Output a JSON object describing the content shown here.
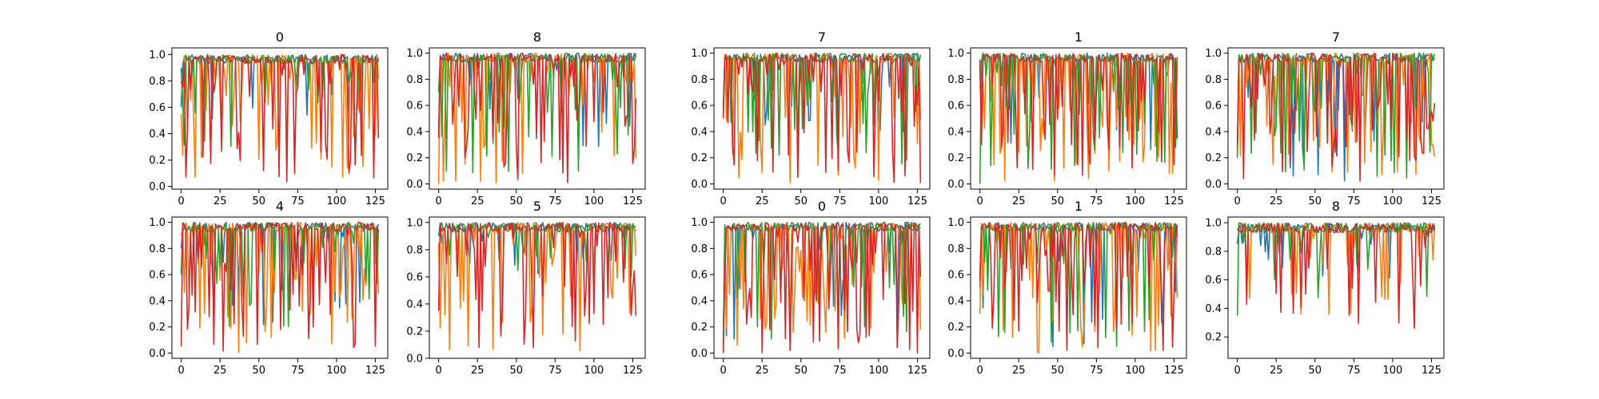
{
  "figure": {
    "background": "#ffffff"
  },
  "chart_data": [
    {
      "type": "line",
      "title": "0",
      "xlim": [
        -6,
        133
      ],
      "ylim": [
        -0.02,
        1.05
      ],
      "xticks": [
        0,
        25,
        50,
        75,
        100,
        125
      ],
      "yticks": [
        0.0,
        0.2,
        0.4,
        0.6,
        0.8,
        1.0
      ],
      "ytick_labels": [
        "0.0",
        "0.2",
        "0.4",
        "0.6",
        "0.8",
        "1.0"
      ],
      "series": [
        {
          "color": "#1f77b4",
          "seed": 11,
          "dip_prob": 0.08,
          "dip_min": 0.5,
          "dip_max": 0.95,
          "start": 0.6
        },
        {
          "color": "#ff7f0e",
          "seed": 12,
          "dip_prob": 0.32,
          "dip_min": 0.05,
          "dip_max": 0.9,
          "start": 0.55
        },
        {
          "color": "#2ca02c",
          "seed": 13,
          "dip_prob": 0.18,
          "dip_min": 0.3,
          "dip_max": 0.95,
          "start": 0.9
        },
        {
          "color": "#d62728",
          "seed": 14,
          "dip_prob": 0.26,
          "dip_min": 0.03,
          "dip_max": 0.95,
          "start": 0.8
        }
      ]
    },
    {
      "type": "line",
      "title": "8",
      "xlim": [
        -6,
        133
      ],
      "ylim": [
        -0.04,
        1.04
      ],
      "xticks": [
        0,
        25,
        50,
        75,
        100,
        125
      ],
      "yticks": [
        0.0,
        0.2,
        0.4,
        0.6,
        0.8,
        1.0
      ],
      "ytick_labels": [
        "0.0",
        "0.2",
        "0.4",
        "0.6",
        "0.8",
        "1.0"
      ],
      "series": [
        {
          "color": "#1f77b4",
          "seed": 21,
          "dip_prob": 0.12,
          "dip_min": 0.2,
          "dip_max": 0.95,
          "start": 0.4
        },
        {
          "color": "#ff7f0e",
          "seed": 22,
          "dip_prob": 0.3,
          "dip_min": 0.0,
          "dip_max": 0.9,
          "start": 0.0
        },
        {
          "color": "#2ca02c",
          "seed": 23,
          "dip_prob": 0.2,
          "dip_min": 0.05,
          "dip_max": 0.95,
          "start": 0.7
        },
        {
          "color": "#d62728",
          "seed": 24,
          "dip_prob": 0.36,
          "dip_min": 0.0,
          "dip_max": 0.95,
          "start": 0.35
        }
      ]
    },
    {
      "type": "line",
      "title": "7",
      "xlim": [
        -6,
        133
      ],
      "ylim": [
        -0.04,
        1.04
      ],
      "xticks": [
        0,
        25,
        50,
        75,
        100,
        125
      ],
      "yticks": [
        0.0,
        0.2,
        0.4,
        0.6,
        0.8,
        1.0
      ],
      "ytick_labels": [
        "0.0",
        "0.2",
        "0.4",
        "0.6",
        "0.8",
        "1.0"
      ],
      "series": [
        {
          "color": "#1f77b4",
          "seed": 31,
          "dip_prob": 0.1,
          "dip_min": 0.4,
          "dip_max": 0.95,
          "start": 0.55
        },
        {
          "color": "#ff7f0e",
          "seed": 32,
          "dip_prob": 0.26,
          "dip_min": 0.0,
          "dip_max": 0.9,
          "start": 0.5
        },
        {
          "color": "#2ca02c",
          "seed": 33,
          "dip_prob": 0.16,
          "dip_min": 0.15,
          "dip_max": 0.95,
          "start": 0.6
        },
        {
          "color": "#d62728",
          "seed": 34,
          "dip_prob": 0.34,
          "dip_min": 0.0,
          "dip_max": 0.95,
          "start": 0.5
        }
      ]
    },
    {
      "type": "line",
      "title": "1",
      "xlim": [
        -6,
        133
      ],
      "ylim": [
        -0.04,
        1.04
      ],
      "xticks": [
        0,
        25,
        50,
        75,
        100,
        125
      ],
      "yticks": [
        0.0,
        0.2,
        0.4,
        0.6,
        0.8,
        1.0
      ],
      "ytick_labels": [
        "0.0",
        "0.2",
        "0.4",
        "0.6",
        "0.8",
        "1.0"
      ],
      "series": [
        {
          "color": "#1f77b4",
          "seed": 41,
          "dip_prob": 0.14,
          "dip_min": 0.2,
          "dip_max": 0.95,
          "start": 0.9
        },
        {
          "color": "#ff7f0e",
          "seed": 42,
          "dip_prob": 0.36,
          "dip_min": 0.0,
          "dip_max": 0.9,
          "start": 0.75
        },
        {
          "color": "#2ca02c",
          "seed": 43,
          "dip_prob": 0.24,
          "dip_min": 0.0,
          "dip_max": 0.95,
          "start": 0.0
        },
        {
          "color": "#d62728",
          "seed": 44,
          "dip_prob": 0.32,
          "dip_min": 0.05,
          "dip_max": 0.95,
          "start": 0.95
        }
      ]
    },
    {
      "type": "line",
      "title": "7",
      "xlim": [
        -6,
        133
      ],
      "ylim": [
        -0.04,
        1.04
      ],
      "xticks": [
        0,
        25,
        50,
        75,
        100,
        125
      ],
      "yticks": [
        0.0,
        0.2,
        0.4,
        0.6,
        0.8,
        1.0
      ],
      "ytick_labels": [
        "0.0",
        "0.2",
        "0.4",
        "0.6",
        "0.8",
        "1.0"
      ],
      "series": [
        {
          "color": "#1f77b4",
          "seed": 51,
          "dip_prob": 0.2,
          "dip_min": 0.0,
          "dip_max": 0.95,
          "start": 0.25
        },
        {
          "color": "#ff7f0e",
          "seed": 52,
          "dip_prob": 0.34,
          "dip_min": 0.05,
          "dip_max": 0.9,
          "start": 0.2
        },
        {
          "color": "#2ca02c",
          "seed": 53,
          "dip_prob": 0.22,
          "dip_min": 0.0,
          "dip_max": 0.95,
          "start": 0.2
        },
        {
          "color": "#d62728",
          "seed": 54,
          "dip_prob": 0.36,
          "dip_min": 0.0,
          "dip_max": 0.95,
          "start": 0.3
        }
      ]
    },
    {
      "type": "line",
      "title": "4",
      "xlim": [
        -6,
        133
      ],
      "ylim": [
        -0.04,
        1.04
      ],
      "xticks": [
        0,
        25,
        50,
        75,
        100,
        125
      ],
      "yticks": [
        0.0,
        0.2,
        0.4,
        0.6,
        0.8,
        1.0
      ],
      "ytick_labels": [
        "0.0",
        "0.2",
        "0.4",
        "0.6",
        "0.8",
        "1.0"
      ],
      "series": [
        {
          "color": "#1f77b4",
          "seed": 61,
          "dip_prob": 0.12,
          "dip_min": 0.2,
          "dip_max": 0.95,
          "start": 0.8
        },
        {
          "color": "#ff7f0e",
          "seed": 62,
          "dip_prob": 0.34,
          "dip_min": 0.0,
          "dip_max": 0.9,
          "start": 0.9
        },
        {
          "color": "#2ca02c",
          "seed": 63,
          "dip_prob": 0.24,
          "dip_min": 0.15,
          "dip_max": 0.95,
          "start": 0.6
        },
        {
          "color": "#d62728",
          "seed": 64,
          "dip_prob": 0.32,
          "dip_min": 0.0,
          "dip_max": 0.95,
          "start": 0.05
        }
      ]
    },
    {
      "type": "line",
      "title": "5",
      "xlim": [
        -6,
        133
      ],
      "ylim": [
        0.0,
        1.04
      ],
      "xticks": [
        0,
        25,
        50,
        75,
        100,
        125
      ],
      "yticks": [
        0.0,
        0.2,
        0.4,
        0.6,
        0.8,
        1.0
      ],
      "ytick_labels": [
        "0.0",
        "0.2",
        "0.4",
        "0.6",
        "0.8",
        "1.0"
      ],
      "series": [
        {
          "color": "#1f77b4",
          "seed": 71,
          "dip_prob": 0.1,
          "dip_min": 0.6,
          "dip_max": 0.95,
          "start": 0.9
        },
        {
          "color": "#ff7f0e",
          "seed": 72,
          "dip_prob": 0.28,
          "dip_min": 0.05,
          "dip_max": 0.9,
          "start": 0.85
        },
        {
          "color": "#2ca02c",
          "seed": 73,
          "dip_prob": 0.1,
          "dip_min": 0.6,
          "dip_max": 0.95,
          "start": 0.9
        },
        {
          "color": "#d62728",
          "seed": 74,
          "dip_prob": 0.3,
          "dip_min": 0.05,
          "dip_max": 0.95,
          "start": 0.35
        }
      ]
    },
    {
      "type": "line",
      "title": "0",
      "xlim": [
        -6,
        133
      ],
      "ylim": [
        -0.04,
        1.04
      ],
      "xticks": [
        0,
        25,
        50,
        75,
        100,
        125
      ],
      "yticks": [
        0.0,
        0.2,
        0.4,
        0.6,
        0.8,
        1.0
      ],
      "ytick_labels": [
        "0.0",
        "0.2",
        "0.4",
        "0.6",
        "0.8",
        "1.0"
      ],
      "series": [
        {
          "color": "#1f77b4",
          "seed": 81,
          "dip_prob": 0.14,
          "dip_min": 0.1,
          "dip_max": 0.95,
          "start": 0.05
        },
        {
          "color": "#ff7f0e",
          "seed": 82,
          "dip_prob": 0.3,
          "dip_min": 0.05,
          "dip_max": 0.9,
          "start": 0.1
        },
        {
          "color": "#2ca02c",
          "seed": 83,
          "dip_prob": 0.26,
          "dip_min": 0.1,
          "dip_max": 0.95,
          "start": 0.05
        },
        {
          "color": "#d62728",
          "seed": 84,
          "dip_prob": 0.36,
          "dip_min": 0.0,
          "dip_max": 0.95,
          "start": 0.0
        }
      ]
    },
    {
      "type": "line",
      "title": "1",
      "xlim": [
        -6,
        133
      ],
      "ylim": [
        -0.04,
        1.04
      ],
      "xticks": [
        0,
        25,
        50,
        75,
        100,
        125
      ],
      "yticks": [
        0.0,
        0.2,
        0.4,
        0.6,
        0.8,
        1.0
      ],
      "ytick_labels": [
        "0.0",
        "0.2",
        "0.4",
        "0.6",
        "0.8",
        "1.0"
      ],
      "series": [
        {
          "color": "#1f77b4",
          "seed": 91,
          "dip_prob": 0.14,
          "dip_min": 0.0,
          "dip_max": 0.95,
          "start": 0.5
        },
        {
          "color": "#ff7f0e",
          "seed": 92,
          "dip_prob": 0.32,
          "dip_min": 0.0,
          "dip_max": 0.9,
          "start": 0.3
        },
        {
          "color": "#2ca02c",
          "seed": 93,
          "dip_prob": 0.22,
          "dip_min": 0.05,
          "dip_max": 0.95,
          "start": 0.6
        },
        {
          "color": "#d62728",
          "seed": 94,
          "dip_prob": 0.36,
          "dip_min": 0.0,
          "dip_max": 0.95,
          "start": 0.55
        }
      ]
    },
    {
      "type": "line",
      "title": "8",
      "xlim": [
        -6,
        133
      ],
      "ylim": [
        0.05,
        1.04
      ],
      "xticks": [
        0,
        25,
        50,
        75,
        100,
        125
      ],
      "yticks": [
        0.2,
        0.4,
        0.6,
        0.8,
        1.0
      ],
      "ytick_labels": [
        "0.2",
        "0.4",
        "0.6",
        "0.8",
        "1.0"
      ],
      "series": [
        {
          "color": "#1f77b4",
          "seed": 101,
          "dip_prob": 0.1,
          "dip_min": 0.6,
          "dip_max": 0.97,
          "start": 0.85
        },
        {
          "color": "#ff7f0e",
          "seed": 102,
          "dip_prob": 0.16,
          "dip_min": 0.3,
          "dip_max": 0.95,
          "start": 0.95
        },
        {
          "color": "#2ca02c",
          "seed": 103,
          "dip_prob": 0.12,
          "dip_min": 0.45,
          "dip_max": 0.97,
          "start": 0.35
        },
        {
          "color": "#d62728",
          "seed": 104,
          "dip_prob": 0.2,
          "dip_min": 0.25,
          "dip_max": 0.97,
          "start": 0.95
        }
      ]
    }
  ]
}
